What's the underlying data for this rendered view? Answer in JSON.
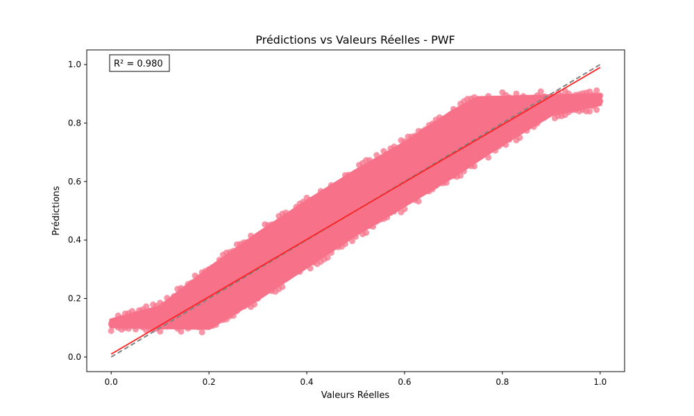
{
  "chart_data": {
    "type": "scatter",
    "title": "Prédictions vs Valeurs Réelles - PWF",
    "xlabel": "Valeurs Réelles",
    "ylabel": "Prédictions",
    "xlim": [
      -0.05,
      1.05
    ],
    "ylim": [
      -0.05,
      1.05
    ],
    "xticks": [
      0.0,
      0.2,
      0.4,
      0.6,
      0.8,
      1.0
    ],
    "yticks": [
      0.0,
      0.2,
      0.4,
      0.6,
      0.8,
      1.0
    ],
    "xtick_labels": [
      "0.0",
      "0.2",
      "0.4",
      "0.6",
      "0.8",
      "1.0"
    ],
    "ytick_labels": [
      "0.0",
      "0.2",
      "0.4",
      "0.6",
      "0.8",
      "1.0"
    ],
    "grid": false,
    "annotation": "R² = 0.980",
    "r_squared": 0.98,
    "scatter_color": "#f77189",
    "scatter_band": {
      "upper": [
        [
          0.0,
          0.125
        ],
        [
          0.1,
          0.17
        ],
        [
          0.2,
          0.3
        ],
        [
          0.3,
          0.42
        ],
        [
          0.4,
          0.53
        ],
        [
          0.5,
          0.635
        ],
        [
          0.6,
          0.73
        ],
        [
          0.7,
          0.84
        ],
        [
          0.75,
          0.885
        ],
        [
          1.0,
          0.895
        ]
      ],
      "lower": [
        [
          0.0,
          0.105
        ],
        [
          0.2,
          0.1
        ],
        [
          0.3,
          0.2
        ],
        [
          0.4,
          0.31
        ],
        [
          0.5,
          0.42
        ],
        [
          0.6,
          0.52
        ],
        [
          0.7,
          0.62
        ],
        [
          0.8,
          0.73
        ],
        [
          0.85,
          0.78
        ],
        [
          0.9,
          0.83
        ],
        [
          1.0,
          0.865
        ]
      ]
    },
    "reference_line": {
      "x": [
        0.0,
        1.0
      ],
      "y": [
        0.0,
        1.0
      ],
      "color": "#808080",
      "style": "dashed"
    },
    "fit_line": {
      "x": [
        0.0,
        1.0
      ],
      "y": [
        0.01,
        0.99
      ],
      "color": "#ff2020",
      "style": "solid"
    }
  }
}
